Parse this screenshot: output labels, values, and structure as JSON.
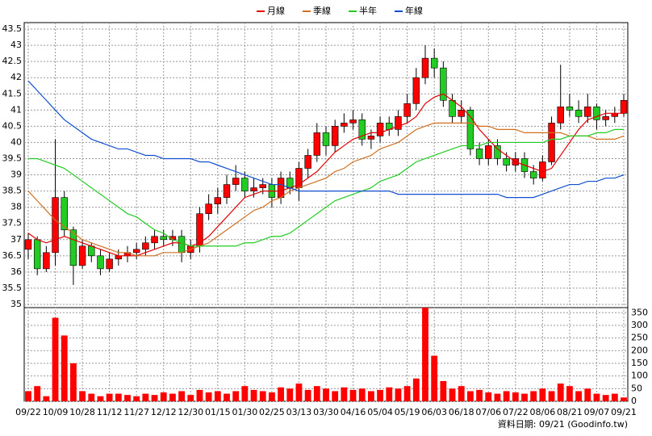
{
  "chart_data": {
    "type": "candlestick",
    "categories": [
      "09/22",
      null,
      null,
      "10/09",
      null,
      null,
      "10/28",
      null,
      null,
      "11/12",
      null,
      null,
      "11/27",
      null,
      null,
      "12/12",
      null,
      null,
      "12/30",
      null,
      null,
      "01/15",
      null,
      null,
      "01/30",
      null,
      null,
      "02/25",
      null,
      null,
      "03/13",
      null,
      null,
      "03/30",
      null,
      null,
      "04/16",
      null,
      null,
      "05/04",
      null,
      null,
      "05/19",
      null,
      null,
      "06/03",
      null,
      null,
      "06/18",
      null,
      null,
      "07/06",
      null,
      null,
      "07/22",
      null,
      null,
      "08/06",
      null,
      null,
      "08/21",
      null,
      null,
      "09/07",
      null,
      null,
      "09/21"
    ],
    "open": [
      36.7,
      37.0,
      36.1,
      36.6,
      38.3,
      37.3,
      36.2,
      36.8,
      36.5,
      36.1,
      36.4,
      36.5,
      36.6,
      36.7,
      36.9,
      37.1,
      37.0,
      37.1,
      36.6,
      36.8,
      37.8,
      38.1,
      38.3,
      38.7,
      38.9,
      38.5,
      38.6,
      38.7,
      38.3,
      38.9,
      38.6,
      39.2,
      39.6,
      40.3,
      39.9,
      40.5,
      40.6,
      40.7,
      40.1,
      40.2,
      40.6,
      40.4,
      40.8,
      41.2,
      42.0,
      42.6,
      42.3,
      41.3,
      40.8,
      41.0,
      39.8,
      39.5,
      39.9,
      39.5,
      39.3,
      39.5,
      39.1,
      38.9,
      39.4,
      40.6,
      41.1,
      41.0,
      40.8,
      41.1,
      40.7,
      40.8,
      40.9
    ],
    "high": [
      37.2,
      37.1,
      36.8,
      40.1,
      38.5,
      37.4,
      37.0,
      36.9,
      36.7,
      36.6,
      36.7,
      36.8,
      36.9,
      37.1,
      37.3,
      37.3,
      37.3,
      37.3,
      37.0,
      38.0,
      38.4,
      38.6,
      39.0,
      39.3,
      39.1,
      38.9,
      38.9,
      38.9,
      39.1,
      39.1,
      39.4,
      39.8,
      40.6,
      40.5,
      40.7,
      40.9,
      41.0,
      40.9,
      40.4,
      40.8,
      40.8,
      41.0,
      41.5,
      42.3,
      43.0,
      42.9,
      42.5,
      41.5,
      41.3,
      41.1,
      40.0,
      40.1,
      40.1,
      39.7,
      39.7,
      39.7,
      39.3,
      39.6,
      40.8,
      42.4,
      41.5,
      41.3,
      41.5,
      41.2,
      41.0,
      41.1,
      41.5
    ],
    "low": [
      36.4,
      35.9,
      36.0,
      36.2,
      37.1,
      35.6,
      36.1,
      36.3,
      35.9,
      36.0,
      36.2,
      36.3,
      36.4,
      36.5,
      36.7,
      36.8,
      36.8,
      36.3,
      36.4,
      36.6,
      37.6,
      37.8,
      38.1,
      38.5,
      38.3,
      38.3,
      38.4,
      38.0,
      38.1,
      38.4,
      38.2,
      38.9,
      39.4,
      39.6,
      39.7,
      40.3,
      40.4,
      39.9,
      39.8,
      40.0,
      40.2,
      40.2,
      40.6,
      41.0,
      41.8,
      42.0,
      41.1,
      40.6,
      40.6,
      39.6,
      39.3,
      39.3,
      39.3,
      39.1,
      39.1,
      38.9,
      38.7,
      38.8,
      39.3,
      40.4,
      40.8,
      40.6,
      40.6,
      40.4,
      40.5,
      40.6,
      40.8
    ],
    "close": [
      37.0,
      36.1,
      36.6,
      38.3,
      37.3,
      36.2,
      36.8,
      36.5,
      36.1,
      36.4,
      36.5,
      36.6,
      36.7,
      36.9,
      37.1,
      37.0,
      37.1,
      36.6,
      36.8,
      37.8,
      38.1,
      38.3,
      38.7,
      38.9,
      38.5,
      38.6,
      38.7,
      38.3,
      38.9,
      38.6,
      39.2,
      39.6,
      40.3,
      39.9,
      40.5,
      40.6,
      40.7,
      40.1,
      40.2,
      40.6,
      40.4,
      40.8,
      41.2,
      42.0,
      42.6,
      42.3,
      41.3,
      40.8,
      41.0,
      39.8,
      39.5,
      39.9,
      39.5,
      39.3,
      39.5,
      39.1,
      38.9,
      39.4,
      40.6,
      41.1,
      41.0,
      40.8,
      41.1,
      40.7,
      40.8,
      40.9,
      41.3
    ],
    "up_color": "#ff0000",
    "down_color": "#22cc22",
    "series": [
      {
        "name": "月線",
        "color": "#e00000",
        "values": [
          37.2,
          37.0,
          36.9,
          37.0,
          37.1,
          37.0,
          36.9,
          36.8,
          36.7,
          36.6,
          36.5,
          36.5,
          36.5,
          36.6,
          36.7,
          36.8,
          36.9,
          36.9,
          36.8,
          36.9,
          37.1,
          37.4,
          37.7,
          38.0,
          38.3,
          38.4,
          38.5,
          38.5,
          38.5,
          38.6,
          38.7,
          38.9,
          39.1,
          39.4,
          39.7,
          39.9,
          40.1,
          40.2,
          40.3,
          40.3,
          40.4,
          40.5,
          40.6,
          40.8,
          41.2,
          41.4,
          41.5,
          41.3,
          41.1,
          40.8,
          40.4,
          40.1,
          39.8,
          39.6,
          39.4,
          39.3,
          39.2,
          39.1,
          39.2,
          39.6,
          40.0,
          40.4,
          40.7,
          40.8,
          40.9,
          40.9,
          40.9
        ]
      },
      {
        "name": "季線",
        "color": "#d07020",
        "values": [
          38.5,
          38.2,
          37.9,
          37.6,
          37.4,
          37.2,
          37.0,
          36.9,
          36.8,
          36.7,
          36.6,
          36.6,
          36.5,
          36.5,
          36.5,
          36.6,
          36.6,
          36.6,
          36.7,
          36.8,
          36.9,
          37.1,
          37.3,
          37.5,
          37.7,
          37.9,
          38.0,
          38.2,
          38.3,
          38.5,
          38.6,
          38.7,
          38.8,
          38.9,
          39.1,
          39.2,
          39.4,
          39.5,
          39.6,
          39.8,
          39.9,
          40.0,
          40.2,
          40.4,
          40.5,
          40.6,
          40.6,
          40.6,
          40.6,
          40.6,
          40.5,
          40.5,
          40.4,
          40.4,
          40.4,
          40.3,
          40.3,
          40.3,
          40.3,
          40.3,
          40.2,
          40.2,
          40.2,
          40.1,
          40.1,
          40.1,
          40.2
        ]
      },
      {
        "name": "半年",
        "color": "#22cc22",
        "values": [
          39.5,
          39.5,
          39.4,
          39.3,
          39.2,
          39.0,
          38.8,
          38.6,
          38.4,
          38.2,
          38.0,
          37.8,
          37.7,
          37.5,
          37.3,
          37.2,
          37.0,
          36.9,
          36.8,
          36.8,
          36.8,
          36.8,
          36.8,
          36.8,
          36.9,
          36.9,
          37.0,
          37.1,
          37.1,
          37.2,
          37.4,
          37.6,
          37.8,
          38.0,
          38.2,
          38.3,
          38.4,
          38.5,
          38.6,
          38.8,
          38.9,
          39.0,
          39.2,
          39.4,
          39.5,
          39.6,
          39.7,
          39.8,
          39.9,
          39.9,
          39.9,
          40.0,
          40.0,
          40.0,
          40.0,
          40.0,
          40.0,
          40.0,
          40.1,
          40.1,
          40.2,
          40.2,
          40.2,
          40.3,
          40.3,
          40.4,
          40.4
        ]
      },
      {
        "name": "年線",
        "color": "#1050d0",
        "values": [
          41.9,
          41.6,
          41.3,
          41.0,
          40.7,
          40.5,
          40.3,
          40.1,
          40.0,
          39.9,
          39.8,
          39.8,
          39.7,
          39.6,
          39.6,
          39.5,
          39.5,
          39.5,
          39.5,
          39.4,
          39.4,
          39.3,
          39.2,
          39.1,
          39.0,
          38.9,
          38.8,
          38.7,
          38.7,
          38.6,
          38.5,
          38.5,
          38.5,
          38.5,
          38.5,
          38.5,
          38.5,
          38.5,
          38.5,
          38.5,
          38.5,
          38.4,
          38.4,
          38.4,
          38.4,
          38.4,
          38.4,
          38.4,
          38.4,
          38.4,
          38.4,
          38.4,
          38.4,
          38.3,
          38.3,
          38.3,
          38.3,
          38.4,
          38.5,
          38.6,
          38.7,
          38.7,
          38.8,
          38.8,
          38.9,
          38.9,
          39.0
        ]
      }
    ],
    "ylim": [
      34.9,
      43.7
    ],
    "yticks": [
      35,
      35.5,
      36,
      36.5,
      37,
      37.5,
      38,
      38.5,
      39,
      39.5,
      40,
      40.5,
      41,
      41.5,
      42,
      42.5,
      43,
      43.5
    ],
    "volume": {
      "color": "#ff0000",
      "values": [
        40,
        60,
        20,
        330,
        260,
        150,
        40,
        30,
        20,
        30,
        30,
        25,
        20,
        30,
        25,
        35,
        30,
        40,
        25,
        45,
        35,
        40,
        30,
        40,
        60,
        45,
        40,
        35,
        55,
        50,
        70,
        45,
        60,
        50,
        40,
        55,
        45,
        50,
        40,
        45,
        55,
        50,
        60,
        90,
        370,
        180,
        80,
        50,
        60,
        40,
        45,
        35,
        30,
        40,
        35,
        30,
        40,
        50,
        40,
        70,
        60,
        40,
        50,
        30,
        25,
        30,
        15
      ]
    },
    "y2lim": [
      0,
      370
    ],
    "y2ticks": [
      0,
      50,
      100,
      150,
      200,
      250,
      300,
      350
    ],
    "grid": true,
    "legend": "top",
    "source": "資料日期: 09/21 (Goodinfo.tw)"
  }
}
